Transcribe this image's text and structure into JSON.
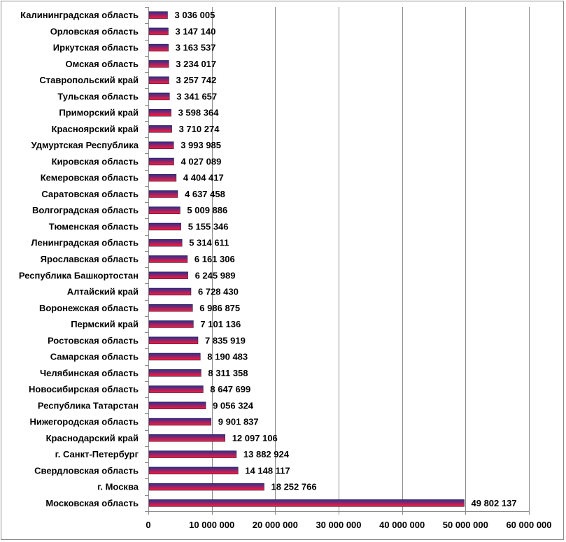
{
  "chart_data": {
    "type": "bar",
    "orientation": "horizontal",
    "title": "",
    "xlabel": "",
    "ylabel": "",
    "xlim": [
      0,
      60000000
    ],
    "ticks": [
      0,
      10000000,
      20000000,
      30000000,
      40000000,
      50000000,
      60000000
    ],
    "tick_labels": [
      "0",
      "10 000 000",
      "20 000 000",
      "30 000 000",
      "40 000 000",
      "50 000 000",
      "60 000 000"
    ],
    "grid": "vertical",
    "legend": "none",
    "bar_gradient": [
      "#2e2e8f",
      "#ff1a3c"
    ],
    "categories": [
      "Калининградская область",
      "Орловская область",
      "Иркутская область",
      "Омская область",
      "Ставропольский край",
      "Тульская область",
      "Приморский край",
      "Красноярский край",
      "Удмуртская Республика",
      "Кировская область",
      "Кемеровская область",
      "Саратовская область",
      "Волгоградская область",
      "Тюменская область",
      "Ленинградская область",
      "Ярославская область",
      "Республика Башкортостан",
      "Алтайский край",
      "Воронежская область",
      "Пермский край",
      "Ростовская область",
      "Самарская область",
      "Челябинская область",
      "Новосибирская область",
      "Республика Татарстан",
      "Нижегородская область",
      "Краснодарский край",
      "г. Санкт-Петербург",
      "Свердловская область",
      "г. Москва",
      "Московская область"
    ],
    "values": [
      3036005,
      3147140,
      3163537,
      3234017,
      3257742,
      3341657,
      3598364,
      3710274,
      3993985,
      4027089,
      4404417,
      4637458,
      5009886,
      5155346,
      5314611,
      6161306,
      6245989,
      6728430,
      6986875,
      7101136,
      7835919,
      8190483,
      8311358,
      8647699,
      9056324,
      9901837,
      12097106,
      13882924,
      14148117,
      18252766,
      49802137
    ],
    "value_labels": [
      "3 036 005",
      "3 147 140",
      "3 163 537",
      "3 234 017",
      "3 257 742",
      "3 341 657",
      "3 598 364",
      "3 710 274",
      "3 993 985",
      "4 027 089",
      "4 404 417",
      "4 637 458",
      "5 009 886",
      "5 155 346",
      "5 314 611",
      "6 161 306",
      "6 245 989",
      "6 728 430",
      "6 986 875",
      "7 101 136",
      "7 835 919",
      "8 190 483",
      "8 311 358",
      "8 647 699",
      "9 056 324",
      "9 901 837",
      "12 097 106",
      "13 882 924",
      "14 148 117",
      "18 252 766",
      "49 802 137"
    ]
  }
}
